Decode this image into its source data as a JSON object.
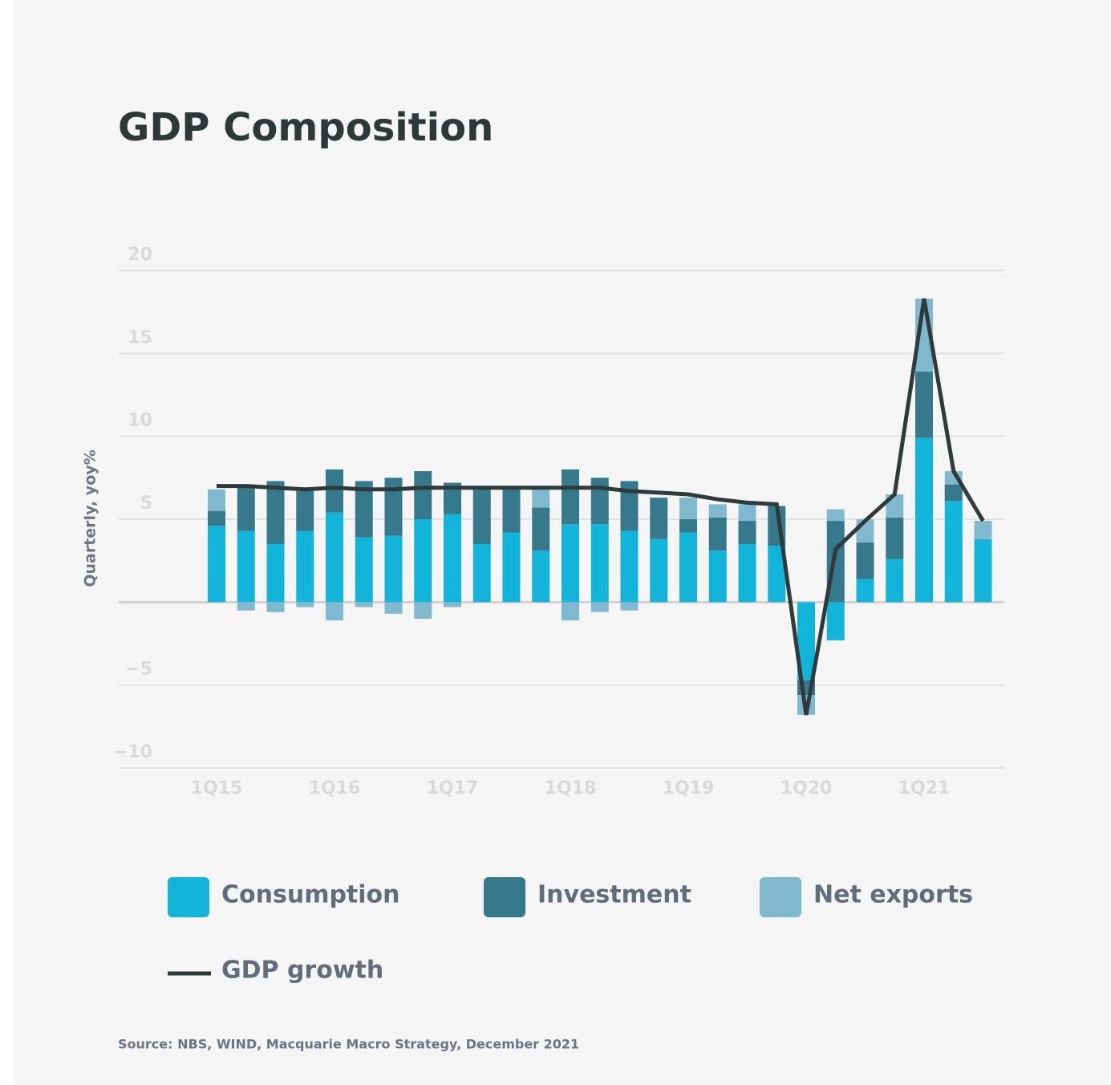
{
  "chart_data": {
    "type": "bar",
    "stacked": true,
    "title": "GDP Composition",
    "y_label": "Quarterly, yoy%",
    "source": "Source: NBS, WIND, Macquarie Macro Strategy, December 2021",
    "categories": [
      "1Q15",
      null,
      null,
      null,
      "1Q16",
      null,
      null,
      null,
      "1Q17",
      null,
      null,
      null,
      "1Q18",
      null,
      null,
      null,
      "1Q19",
      null,
      null,
      null,
      "1Q20",
      null,
      null,
      null,
      "1Q21",
      null,
      null
    ],
    "series": [
      {
        "name": "Consumption",
        "color": "#12b4d9",
        "values": [
          4.6,
          4.3,
          3.5,
          4.3,
          5.4,
          3.9,
          4.0,
          5.0,
          5.3,
          3.5,
          4.2,
          3.1,
          4.7,
          4.7,
          4.3,
          3.8,
          4.2,
          3.1,
          3.5,
          3.4,
          -4.7,
          -2.3,
          1.4,
          2.6,
          9.9,
          6.1,
          3.8
        ]
      },
      {
        "name": "Investment",
        "color": "#36798c",
        "values": [
          0.9,
          2.8,
          3.8,
          2.4,
          2.6,
          3.4,
          3.5,
          2.9,
          1.9,
          3.5,
          2.8,
          2.6,
          3.3,
          2.8,
          3.0,
          2.5,
          0.8,
          2.0,
          1.4,
          2.4,
          -0.9,
          4.9,
          2.2,
          2.5,
          4.0,
          1.0,
          0
        ]
      },
      {
        "name": "Net exports",
        "color": "#80b9cf",
        "values": [
          1.3,
          -0.5,
          -0.6,
          -0.3,
          -1.1,
          -0.3,
          -0.7,
          -1.0,
          -0.3,
          0,
          0,
          1.3,
          -1.1,
          -0.6,
          -0.5,
          0,
          1.3,
          0.8,
          1.0,
          0,
          -1.2,
          0.7,
          1.4,
          1.4,
          4.4,
          0.8,
          1.1
        ]
      },
      {
        "name": "GDP growth",
        "color": "#2f3b3b",
        "type": "line",
        "values": [
          7.0,
          7.0,
          6.9,
          6.8,
          6.9,
          6.8,
          6.8,
          6.9,
          6.9,
          6.9,
          6.9,
          6.9,
          6.9,
          6.9,
          6.7,
          6.6,
          6.5,
          6.2,
          6.0,
          5.9,
          -6.8,
          3.2,
          4.9,
          6.5,
          18.3,
          7.9,
          4.9
        ]
      }
    ],
    "ylim": [
      -10,
      20
    ],
    "yticks": [
      {
        "value": -10,
        "label": "−10"
      },
      {
        "value": -5,
        "label": "−5"
      },
      5,
      10,
      15,
      20
    ],
    "grid": true
  }
}
